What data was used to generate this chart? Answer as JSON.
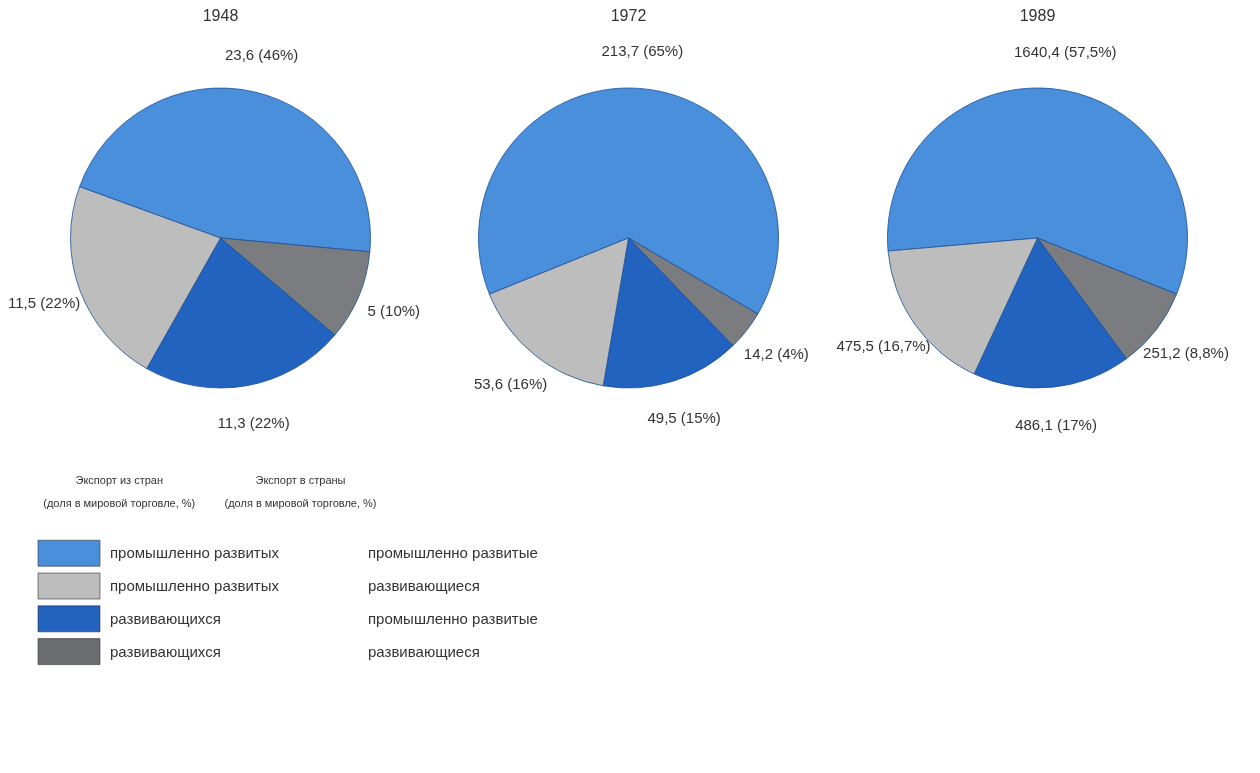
{
  "chart_data": [
    {
      "type": "pie",
      "title": "1948",
      "categories": [
        null,
        null,
        null,
        null
      ],
      "values": [
        23.6,
        5,
        11.3,
        11.5
      ],
      "colors": [
        "#4a8fdb",
        "#7a7c80",
        "#2163bf",
        "#bdbdbd"
      ],
      "value_labels": [
        "23,6 (46%)",
        "5 (10%)",
        "11,3 (22%)",
        "11,5 (22%)"
      ]
    },
    {
      "type": "pie",
      "title": "1972",
      "categories": [
        null,
        null,
        null,
        null
      ],
      "values": [
        213.7,
        14.2,
        49.5,
        53.6
      ],
      "colors": [
        "#4a8fdb",
        "#7a7c80",
        "#2163bf",
        "#bdbdbd"
      ],
      "value_labels": [
        "213,7 (65%)",
        "14,2 (4%)",
        "49,5 (15%)",
        "53,6 (16%)"
      ]
    },
    {
      "type": "pie",
      "title": "1989",
      "categories": [
        null,
        null,
        null,
        null
      ],
      "values": [
        1640.4,
        251.2,
        486.1,
        475.5
      ],
      "colors": [
        "#4a8fdb",
        "#7a7c80",
        "#2163bf",
        "#bdbdbd"
      ],
      "value_labels": [
        "1640,4 (57,5%)",
        "251,2 (8,8%)",
        "486,1 (17%)",
        "475,5 (16,7%)"
      ]
    },
    {
      "type": "other",
      "categories": [
        "промышленно развитых",
        "промышленно развитых",
        "развивающихся",
        "развивающихся"
      ],
      "y_categories": [
        "промышленно развитые",
        "развивающиеся",
        "промышленно развитые",
        "развивающиеся"
      ],
      "colors": [
        "#4a8fdb",
        "#bdbdbd",
        "#2163bf",
        "#6a6c70"
      ],
      "annotations": [
        "Экспорт из стран",
        "(доля в мировой торговле, %)",
        "Экспорт в страны",
        "(доля в мировой торговле, %)"
      ]
    }
  ]
}
